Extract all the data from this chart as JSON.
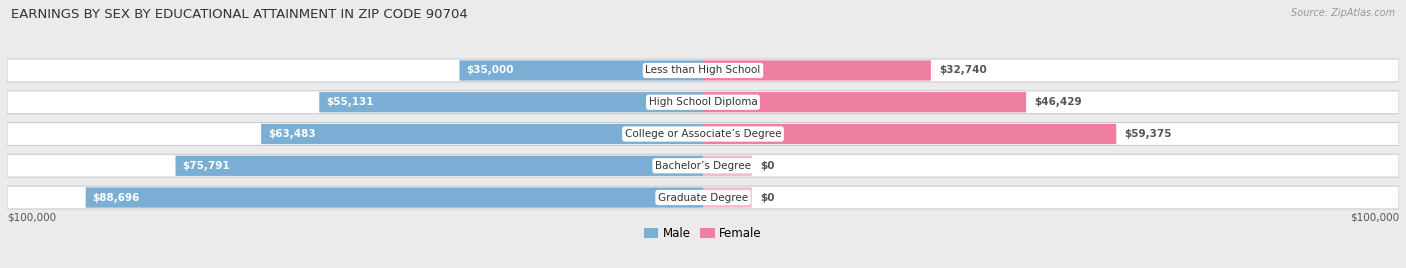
{
  "title": "EARNINGS BY SEX BY EDUCATIONAL ATTAINMENT IN ZIP CODE 90704",
  "source": "Source: ZipAtlas.com",
  "categories": [
    "Less than High School",
    "High School Diploma",
    "College or Associate’s Degree",
    "Bachelor’s Degree",
    "Graduate Degree"
  ],
  "male_values": [
    35000,
    55131,
    63483,
    75791,
    88696
  ],
  "female_display": [
    32740,
    46429,
    59375,
    0,
    0
  ],
  "male_labels": [
    "$35,000",
    "$55,131",
    "$63,483",
    "$75,791",
    "$88,696"
  ],
  "female_labels": [
    "$32,740",
    "$46,429",
    "$59,375",
    "$0",
    "$0"
  ],
  "male_color": "#7aaed4",
  "female_color": "#ee7fa0",
  "male_color_label": "#6699cc",
  "female_color_label": "#ee7fa0",
  "max_value": 100000,
  "bg_color": "#ebebeb",
  "row_bg_even": "#f5f5f5",
  "row_bg_odd": "#f0f0f0",
  "title_fontsize": 9.5,
  "label_fontsize": 7.5,
  "cat_fontsize": 7.5,
  "axis_label_fontsize": 7.5,
  "legend_fontsize": 8.5
}
